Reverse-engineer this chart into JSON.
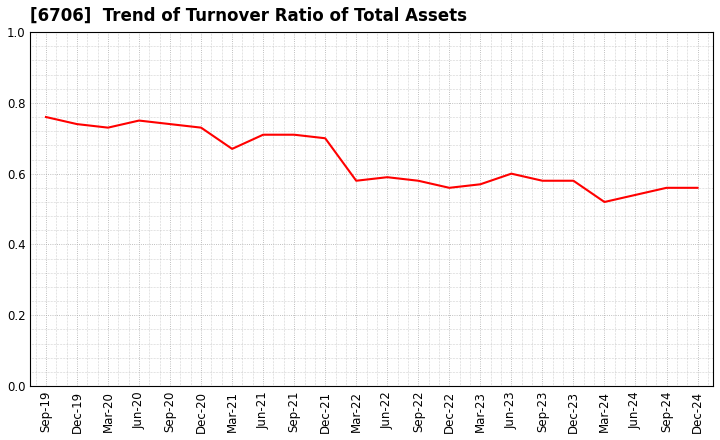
{
  "title": "[6706]  Trend of Turnover Ratio of Total Assets",
  "x_labels": [
    "Sep-19",
    "Dec-19",
    "Mar-20",
    "Jun-20",
    "Sep-20",
    "Dec-20",
    "Mar-21",
    "Jun-21",
    "Sep-21",
    "Dec-21",
    "Mar-22",
    "Jun-22",
    "Sep-22",
    "Dec-22",
    "Mar-23",
    "Jun-23",
    "Sep-23",
    "Dec-23",
    "Mar-24",
    "Jun-24",
    "Sep-24",
    "Dec-24"
  ],
  "y_values": [
    0.76,
    0.74,
    0.73,
    0.75,
    0.74,
    0.73,
    0.67,
    0.71,
    0.71,
    0.7,
    0.58,
    0.59,
    0.58,
    0.56,
    0.57,
    0.6,
    0.58,
    0.58,
    0.52,
    0.54,
    0.56,
    0.56
  ],
  "line_color": "#ff0000",
  "line_width": 1.5,
  "ylim": [
    0.0,
    1.0
  ],
  "yticks": [
    0.0,
    0.2,
    0.4,
    0.6,
    0.8,
    1.0
  ],
  "background_color": "#ffffff",
  "grid_color": "#aaaaaa",
  "spine_color": "#000000",
  "title_fontsize": 12,
  "tick_fontsize": 8.5
}
